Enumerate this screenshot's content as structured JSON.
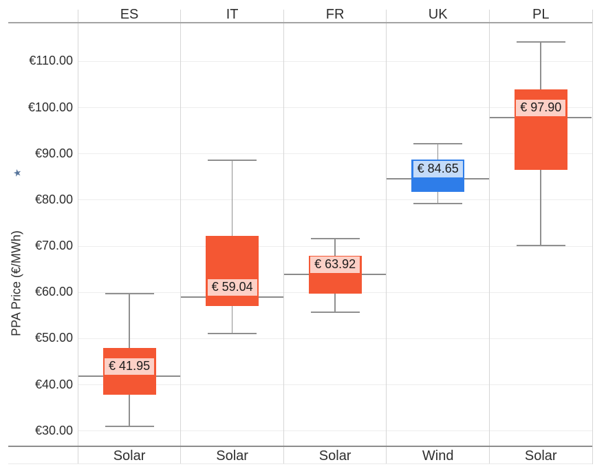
{
  "chart_data": {
    "type": "boxplot",
    "title": "",
    "ylabel": "PPA Price (€/MWh)",
    "ylabel_star_icon": "★",
    "grid": "horizontal",
    "ylim": [
      26.7,
      118.4
    ],
    "y_ticks": [
      {
        "value": 110,
        "label": "€110.00"
      },
      {
        "value": 100,
        "label": "€100.00"
      },
      {
        "value": 90,
        "label": "€90.00"
      },
      {
        "value": 80,
        "label": "€80.00"
      },
      {
        "value": 70,
        "label": "€70.00"
      },
      {
        "value": 60,
        "label": "€60.00"
      },
      {
        "value": 50,
        "label": "€50.00"
      },
      {
        "value": 40,
        "label": "€40.00"
      },
      {
        "value": 30,
        "label": "€30.00"
      }
    ],
    "groups": [
      {
        "country": "ES",
        "category": "Solar",
        "color": "#F45733",
        "whisker_low": 31.0,
        "q1": 37.8,
        "median": 41.95,
        "q3": 48.0,
        "whisker_high": 59.7,
        "median_label": "€ 41.95"
      },
      {
        "country": "IT",
        "category": "Solar",
        "color": "#F45733",
        "whisker_low": 51.1,
        "q1": 57.0,
        "median": 59.04,
        "q3": 72.3,
        "whisker_high": 88.7,
        "median_label": "€ 59.04"
      },
      {
        "country": "FR",
        "category": "Solar",
        "color": "#F45733",
        "whisker_low": 55.7,
        "q1": 59.8,
        "median": 63.92,
        "q3": 67.9,
        "whisker_high": 71.6,
        "median_label": "€ 63.92"
      },
      {
        "country": "UK",
        "category": "Wind",
        "color": "#2E7DE9",
        "whisker_low": 79.2,
        "q1": 81.8,
        "median": 84.65,
        "q3": 88.8,
        "whisker_high": 92.2,
        "median_label": "€ 84.65"
      },
      {
        "country": "PL",
        "category": "Solar",
        "color": "#F45733",
        "whisker_low": 70.2,
        "q1": 86.6,
        "median": 97.9,
        "q3": 103.9,
        "whisker_high": 114.3,
        "median_label": "€ 97.90"
      }
    ]
  },
  "colors": {
    "solar_box": "#F45733",
    "wind_box": "#2E7DE9",
    "gridline": "#ededed",
    "panel_border": "#d6d6d6",
    "header_axis_line": "#a3a3a3",
    "bottom_axis_line": "#8c8c8c",
    "faint_bottom_line": "#e8e8e8",
    "median_line": "#8a8a8a",
    "whisker": "#8f8f8f",
    "text": "#2e2e2e",
    "value_label_text": "#1c1c1c",
    "value_label_bg": "rgba(255,255,255,0.72)",
    "star": "#56749b"
  }
}
